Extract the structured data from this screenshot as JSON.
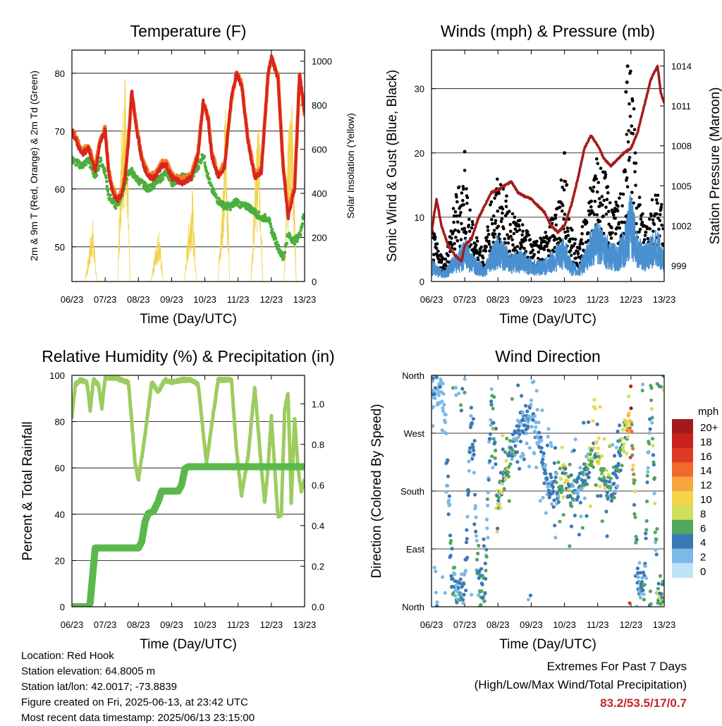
{
  "chart_data": [
    {
      "type": "line",
      "title": "Temperature (F)",
      "xlabel": "Time (Day/UTC)",
      "ylabel": "2m & 9m T (Red, Orange) & 2m Td (Green)",
      "y2label": "Solar Insolation (Yellow)",
      "x_ticks": [
        "06/23",
        "07/23",
        "08/23",
        "09/23",
        "10/23",
        "11/23",
        "12/23",
        "13/23"
      ],
      "xlim": [
        6,
        13
      ],
      "ylim": [
        44,
        84
      ],
      "y_ticks": [
        50,
        60,
        70,
        80
      ],
      "y2lim": [
        0,
        1050
      ],
      "y2_ticks": [
        0,
        200,
        400,
        600,
        800,
        1000
      ],
      "grid": true,
      "colors": {
        "t2m": "#d7261e",
        "t9m": "#f47d2a",
        "td": "#4caf3c",
        "solar": "#f2d34d"
      },
      "series": [
        {
          "name": "2m T",
          "x": [
            6.0,
            6.3,
            6.5,
            6.7,
            6.85,
            7.0,
            7.1,
            7.2,
            7.35,
            7.5,
            7.6,
            7.7,
            7.8,
            7.9,
            8.1,
            8.3,
            8.5,
            8.7,
            8.85,
            9.0,
            9.3,
            9.6,
            9.8,
            9.95,
            10.1,
            10.2,
            10.4,
            10.6,
            10.8,
            10.95,
            11.1,
            11.3,
            11.5,
            11.7,
            11.9,
            12.0,
            12.2,
            12.35,
            12.5,
            12.7,
            12.85,
            13.0
          ],
          "values": [
            70,
            66,
            67,
            63,
            68,
            70,
            63,
            60,
            58,
            59,
            62,
            68,
            77,
            72,
            65,
            62,
            62,
            64,
            64,
            62,
            61,
            62,
            66,
            75,
            72,
            66,
            62,
            64,
            76,
            80,
            78,
            68,
            62,
            63,
            80,
            83,
            79,
            64,
            55,
            60,
            80,
            73
          ]
        },
        {
          "name": "9m T",
          "x": [
            6.0,
            6.3,
            6.5,
            6.7,
            6.85,
            7.0,
            7.1,
            7.2,
            7.35,
            7.5,
            7.6,
            7.7,
            7.8,
            7.9,
            8.1,
            8.3,
            8.5,
            8.7,
            8.85,
            9.0,
            9.3,
            9.6,
            9.8,
            9.95,
            10.1,
            10.2,
            10.4,
            10.6,
            10.8,
            10.95,
            11.1,
            11.3,
            11.5,
            11.7,
            11.9,
            12.0,
            12.2,
            12.35,
            12.5,
            12.7,
            12.85,
            13.0
          ],
          "values": [
            70.5,
            66.5,
            67.5,
            63.5,
            68.5,
            70.5,
            63.5,
            60.5,
            58.5,
            59.5,
            62.5,
            68.5,
            76.5,
            72.5,
            65.5,
            62.5,
            62.5,
            64.5,
            64.5,
            62.5,
            61.5,
            62.5,
            66.5,
            75,
            72.5,
            66.5,
            62.5,
            64.5,
            75.5,
            80,
            78.5,
            68.5,
            62.5,
            63.5,
            79.5,
            82.5,
            79.5,
            64.5,
            56,
            60.5,
            79.5,
            73
          ]
        },
        {
          "name": "2m Td",
          "x": [
            6.0,
            6.3,
            6.5,
            6.7,
            6.85,
            7.0,
            7.1,
            7.2,
            7.35,
            7.5,
            7.6,
            7.7,
            7.8,
            7.9,
            8.1,
            8.3,
            8.5,
            8.7,
            8.85,
            9.0,
            9.3,
            9.6,
            9.8,
            9.95,
            10.1,
            10.2,
            10.4,
            10.6,
            10.8,
            10.95,
            11.1,
            11.3,
            11.5,
            11.7,
            11.9,
            12.0,
            12.2,
            12.35,
            12.5,
            12.7,
            12.85,
            13.0
          ],
          "values": [
            65,
            64,
            65,
            62,
            65,
            63,
            59,
            58,
            57,
            59,
            61,
            63,
            63,
            62,
            61,
            60,
            61,
            62,
            63,
            61,
            62,
            62,
            64,
            66,
            62,
            60,
            58,
            57,
            57,
            58,
            57,
            57,
            56,
            55,
            55,
            53,
            50,
            48,
            52,
            51,
            52,
            56
          ]
        },
        {
          "name": "Solar",
          "x": [
            6.0,
            6.38,
            6.5,
            6.62,
            6.75,
            7.0,
            7.38,
            7.5,
            7.62,
            7.75,
            8.0,
            8.38,
            8.5,
            8.62,
            8.75,
            9.0,
            9.38,
            9.5,
            9.62,
            9.75,
            10.0,
            10.38,
            10.5,
            10.62,
            10.75,
            11.0,
            11.38,
            11.5,
            11.62,
            11.75,
            12.0,
            12.38,
            12.5,
            12.62,
            12.75,
            13.0
          ],
          "values": [
            0,
            0,
            120,
            300,
            0,
            0,
            0,
            850,
            1000,
            0,
            0,
            0,
            150,
            250,
            0,
            0,
            0,
            250,
            450,
            0,
            0,
            0,
            300,
            850,
            0,
            0,
            0,
            450,
            800,
            0,
            0,
            0,
            650,
            950,
            0,
            0
          ]
        }
      ]
    },
    {
      "type": "scatter",
      "title": "Winds (mph) & Pressure (mb)",
      "xlabel": "Time (Day/UTC)",
      "ylabel": "Sonic Wind & Gust (Blue, Black)",
      "y2label": "Station Pressure (Maroon)",
      "x_ticks": [
        "06/23",
        "07/23",
        "08/23",
        "09/23",
        "10/23",
        "11/23",
        "12/23",
        "13/23"
      ],
      "xlim": [
        6,
        13
      ],
      "ylim": [
        0,
        36
      ],
      "y_ticks": [
        0,
        10,
        20,
        30
      ],
      "y2lim": [
        997.8,
        1015.2
      ],
      "y2_ticks": [
        999,
        1002,
        1005,
        1008,
        1011,
        1014
      ],
      "grid": true,
      "colors": {
        "wind": "#4a90d0",
        "gust": "#000000",
        "pressure": "#a51c1c"
      },
      "series": [
        {
          "name": "Sonic Wind",
          "x": [
            6.0,
            6.2,
            6.4,
            6.6,
            6.8,
            7.0,
            7.2,
            7.4,
            7.6,
            7.8,
            8.0,
            8.2,
            8.4,
            8.6,
            8.8,
            9.0,
            9.2,
            9.4,
            9.6,
            9.8,
            10.0,
            10.2,
            10.4,
            10.6,
            10.8,
            11.0,
            11.2,
            11.4,
            11.6,
            11.8,
            12.0,
            12.2,
            12.4,
            12.6,
            12.8,
            13.0
          ],
          "values": [
            3,
            2,
            1.5,
            3,
            4,
            6,
            4,
            3,
            2,
            5,
            6,
            5,
            4,
            4,
            4,
            3,
            3,
            3,
            4,
            5,
            6,
            3,
            2,
            4,
            7,
            8,
            7,
            5,
            5,
            7,
            12,
            6,
            5,
            6,
            7,
            4
          ]
        },
        {
          "name": "Gust",
          "x": [
            6.0,
            6.2,
            6.4,
            6.6,
            6.8,
            7.0,
            7.2,
            7.4,
            7.6,
            7.8,
            8.0,
            8.2,
            8.4,
            8.6,
            8.8,
            9.0,
            9.2,
            9.4,
            9.6,
            9.8,
            10.0,
            10.2,
            10.4,
            10.6,
            10.8,
            11.0,
            11.2,
            11.4,
            11.6,
            11.8,
            12.0,
            12.2,
            12.4,
            12.6,
            12.8,
            13.0
          ],
          "values": [
            8,
            5,
            3,
            9,
            14,
            17,
            9,
            6,
            5,
            12,
            15,
            13,
            10,
            9,
            8,
            7,
            6,
            7,
            9,
            12,
            17,
            8,
            5,
            9,
            14,
            18,
            16,
            12,
            11,
            16,
            33,
            14,
            9,
            12,
            14,
            9
          ]
        },
        {
          "name": "Pressure",
          "x": [
            6.0,
            6.15,
            6.3,
            6.5,
            6.7,
            6.9,
            7.0,
            7.2,
            7.4,
            7.6,
            7.8,
            8.0,
            8.2,
            8.4,
            8.6,
            8.8,
            9.0,
            9.2,
            9.4,
            9.6,
            9.8,
            10.0,
            10.2,
            10.4,
            10.6,
            10.8,
            11.0,
            11.2,
            11.4,
            11.6,
            11.8,
            12.0,
            12.2,
            12.4,
            12.6,
            12.8,
            12.9,
            13.0
          ],
          "values": [
            1001.5,
            1004,
            1002,
            1000.5,
            999.8,
            999.3,
            1000.5,
            1001,
            1002.5,
            1003.5,
            1004.5,
            1004.7,
            1005,
            1005.3,
            1004.5,
            1004.2,
            1004,
            1003.5,
            1003,
            1002,
            1001.5,
            1002,
            1003.5,
            1005.5,
            1007.8,
            1008.8,
            1008,
            1007,
            1006.5,
            1007,
            1007.5,
            1007.8,
            1009,
            1011,
            1013,
            1014,
            1012,
            1011.2
          ]
        }
      ]
    },
    {
      "type": "line",
      "title": "Relative Humidity (%) & Precipitation (in)",
      "xlabel": "Time (Day/UTC)",
      "ylabel": "Percent & Total Rainfall",
      "x_ticks": [
        "06/23",
        "07/23",
        "08/23",
        "09/23",
        "10/23",
        "11/23",
        "12/23",
        "13/23"
      ],
      "xlim": [
        6,
        13
      ],
      "ylim": [
        0,
        100
      ],
      "y_ticks": [
        0,
        20,
        40,
        60,
        80,
        100
      ],
      "y2lim": [
        0,
        1.14
      ],
      "y2_ticks": [
        "0.0",
        "0.2",
        "0.4",
        "0.6",
        "0.8",
        "1.0"
      ],
      "grid": true,
      "colors": {
        "rh": "#9ccc5e",
        "precip": "#5bb84a"
      },
      "series": [
        {
          "name": "RH",
          "x": [
            6.0,
            6.1,
            6.25,
            6.45,
            6.55,
            6.65,
            6.8,
            6.9,
            7.0,
            7.1,
            7.3,
            7.5,
            7.7,
            7.8,
            7.9,
            8.0,
            8.2,
            8.4,
            8.6,
            8.8,
            9.0,
            9.3,
            9.6,
            9.8,
            9.95,
            10.05,
            10.2,
            10.4,
            10.6,
            10.8,
            10.95,
            11.1,
            11.3,
            11.5,
            11.7,
            11.8,
            11.9,
            12.0,
            12.1,
            12.2,
            12.3,
            12.4,
            12.5,
            12.55,
            12.6,
            12.7,
            12.8,
            12.9,
            13.0
          ],
          "values": [
            82,
            96,
            98,
            97,
            85,
            98,
            96,
            86,
            99,
            99,
            99,
            98,
            97,
            80,
            62,
            55,
            74,
            97,
            93,
            98,
            97,
            98,
            98,
            96,
            75,
            62,
            78,
            98,
            98,
            98,
            68,
            48,
            65,
            95,
            60,
            45,
            60,
            82,
            60,
            39,
            40,
            85,
            92,
            70,
            45,
            82,
            60,
            50,
            55
          ]
        },
        {
          "name": "Precipitation",
          "x": [
            6.0,
            6.5,
            6.55,
            6.65,
            6.7,
            7.0,
            7.5,
            7.8,
            8.0,
            8.1,
            8.2,
            8.3,
            8.45,
            8.6,
            8.7,
            8.8,
            9.0,
            9.2,
            9.3,
            9.4,
            9.5,
            9.7,
            13.0
          ],
          "values": [
            0,
            0,
            0.02,
            0.2,
            0.29,
            0.29,
            0.29,
            0.29,
            0.29,
            0.32,
            0.42,
            0.46,
            0.47,
            0.52,
            0.57,
            0.57,
            0.57,
            0.57,
            0.6,
            0.68,
            0.69,
            0.69,
            0.69
          ]
        }
      ]
    },
    {
      "type": "scatter",
      "title": "Wind Direction",
      "xlabel": "Time (Day/UTC)",
      "ylabel": "Direction (Colored By Speed)",
      "x_ticks": [
        "06/23",
        "07/23",
        "08/23",
        "09/23",
        "10/23",
        "11/23",
        "12/23",
        "13/23"
      ],
      "xlim": [
        6,
        13
      ],
      "ylim": [
        0,
        360
      ],
      "y_tick_labels": [
        "North",
        "East",
        "South",
        "West",
        "North"
      ],
      "grid": true,
      "legend": {
        "title": "mph",
        "labels": [
          "20+",
          "18",
          "16",
          "14",
          "12",
          "10",
          "8",
          "6",
          "4",
          "2",
          "0"
        ],
        "colors": [
          "#a31a1c",
          "#c9211e",
          "#e03a26",
          "#f0692e",
          "#f7a53f",
          "#f7d24b",
          "#cfe05a",
          "#4fa85c",
          "#3b78b7",
          "#7cb9e6",
          "#bfe3f7"
        ]
      },
      "series": [
        {
          "name": "Direction",
          "x": [
            6.2,
            6.4,
            6.6,
            6.8,
            7.0,
            7.2,
            7.4,
            7.6,
            7.8,
            8.0,
            8.2,
            8.4,
            8.6,
            8.8,
            9.0,
            9.2,
            9.4,
            9.6,
            9.8,
            10.0,
            10.2,
            10.4,
            10.6,
            10.8,
            11.0,
            11.2,
            11.4,
            11.6,
            11.8,
            12.0,
            12.2,
            12.4,
            12.6,
            12.8
          ],
          "values": [
            340,
            320,
            40,
            20,
            30,
            320,
            40,
            20,
            330,
            160,
            200,
            240,
            270,
            290,
            300,
            260,
            220,
            180,
            190,
            200,
            170,
            190,
            210,
            230,
            250,
            200,
            180,
            210,
            270,
            300,
            40,
            30,
            350,
            20
          ],
          "speeds": [
            3,
            2,
            6,
            4,
            5,
            3,
            6,
            5,
            4,
            9,
            8,
            6,
            4,
            4,
            3,
            3,
            4,
            4,
            5,
            10,
            6,
            4,
            5,
            8,
            9,
            8,
            6,
            5,
            8,
            17,
            4,
            5,
            6,
            7
          ]
        }
      ]
    }
  ],
  "footer": {
    "location": "Location: Red Hook",
    "elevation": "Station elevation: 64.8005 m",
    "latlon": "Station lat/lon: 42.0017; -73.8839",
    "created": "Figure created on Fri, 2025-06-13, at 23:42 UTC",
    "recent": "Most recent data timestamp: 2025/06/13 23:15:00"
  },
  "extremes": {
    "title": "Extremes For Past 7 Days",
    "subtitle": "(High/Low/Max Wind/Total Precipitation)",
    "value": "83.2/53.5/17/0.7"
  }
}
